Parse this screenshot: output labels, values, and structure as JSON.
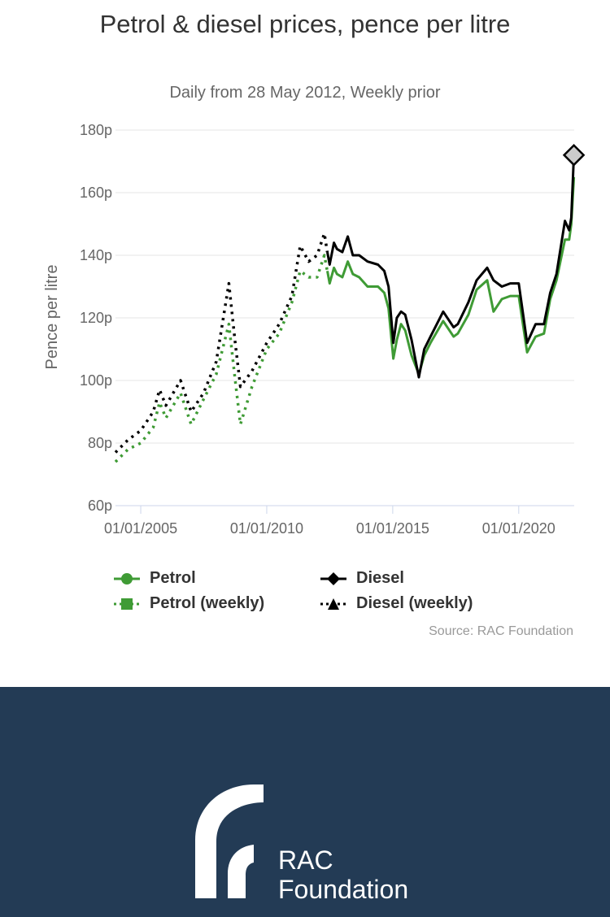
{
  "chart_data": {
    "type": "line",
    "title": "Petrol & diesel prices, pence per litre",
    "subtitle": "Daily from 28 May 2012, Weekly prior",
    "ylabel": "Pence per litre",
    "xlabel": "",
    "ylim": [
      60,
      180
    ],
    "y_ticks": [
      "60p",
      "80p",
      "100p",
      "120p",
      "140p",
      "160p",
      "180p"
    ],
    "y_tick_values": [
      60,
      80,
      100,
      120,
      140,
      160,
      180
    ],
    "x_ticks": [
      "01/01/2005",
      "01/01/2010",
      "01/01/2015",
      "01/01/2020"
    ],
    "x_tick_values": [
      "2005-01-01",
      "2010-01-01",
      "2015-01-01",
      "2020-01-01"
    ],
    "xlim": [
      "2004-01-01",
      "2022-03-15"
    ],
    "legend_position": "bottom",
    "grid": true,
    "credit": "Source: RAC Foundation",
    "colors": {
      "petrol": "#3f9b35",
      "diesel": "#000000",
      "marker_fill": "#cccccc"
    },
    "series": [
      {
        "name": "Petrol",
        "style": "solid",
        "color": "#3f9b35",
        "x": [
          "2012-05-28",
          "2012-07-01",
          "2012-09-01",
          "2012-10-15",
          "2013-01-01",
          "2013-03-20",
          "2013-06-01",
          "2013-09-01",
          "2014-01-01",
          "2014-06-01",
          "2014-09-01",
          "2014-11-01",
          "2015-01-10",
          "2015-03-01",
          "2015-05-01",
          "2015-07-01",
          "2015-10-01",
          "2016-01-15",
          "2016-04-01",
          "2016-07-01",
          "2017-01-01",
          "2017-06-01",
          "2017-08-01",
          "2018-01-01",
          "2018-05-01",
          "2018-10-01",
          "2019-01-01",
          "2019-05-01",
          "2019-09-01",
          "2020-01-01",
          "2020-05-01",
          "2020-09-01",
          "2021-01-01",
          "2021-04-01",
          "2021-07-01",
          "2021-11-01",
          "2022-01-01",
          "2022-02-01",
          "2022-03-10"
        ],
        "y": [
          135,
          131,
          136,
          134,
          133,
          138,
          134,
          133,
          130,
          130,
          128,
          123,
          107,
          113,
          118,
          116,
          108,
          102,
          108,
          112,
          119,
          114,
          115,
          121,
          129,
          132,
          122,
          126,
          127,
          127,
          109,
          114,
          115,
          126,
          132,
          145,
          145,
          150,
          165
        ]
      },
      {
        "name": "Diesel",
        "style": "solid",
        "color": "#000000",
        "x": [
          "2012-05-28",
          "2012-07-01",
          "2012-09-01",
          "2012-10-15",
          "2013-01-01",
          "2013-03-20",
          "2013-06-01",
          "2013-09-01",
          "2014-01-01",
          "2014-06-01",
          "2014-09-01",
          "2014-11-01",
          "2015-01-10",
          "2015-03-01",
          "2015-05-01",
          "2015-07-01",
          "2015-10-01",
          "2016-01-15",
          "2016-04-01",
          "2016-07-01",
          "2017-01-01",
          "2017-06-01",
          "2017-08-01",
          "2018-01-01",
          "2018-05-01",
          "2018-10-01",
          "2019-01-01",
          "2019-05-01",
          "2019-09-01",
          "2020-01-01",
          "2020-05-01",
          "2020-09-01",
          "2021-01-01",
          "2021-04-01",
          "2021-07-01",
          "2021-11-01",
          "2022-01-01",
          "2022-02-01",
          "2022-03-10"
        ],
        "y": [
          141,
          137,
          144,
          142,
          141,
          146,
          140,
          140,
          138,
          137,
          135,
          130,
          112,
          120,
          122,
          121,
          113,
          101,
          110,
          114,
          122,
          117,
          118,
          125,
          132,
          136,
          132,
          130,
          131,
          131,
          112,
          118,
          118,
          128,
          134,
          151,
          148,
          152,
          172
        ]
      },
      {
        "name": "Petrol (weekly)",
        "style": "dotted",
        "color": "#3f9b35",
        "x": [
          "2004-01-01",
          "2004-07-01",
          "2005-01-01",
          "2005-07-01",
          "2005-10-01",
          "2006-01-01",
          "2006-08-01",
          "2007-01-01",
          "2007-07-01",
          "2008-01-01",
          "2008-07-01",
          "2008-10-01",
          "2008-12-15",
          "2009-06-01",
          "2010-01-01",
          "2010-07-01",
          "2011-01-01",
          "2011-05-01",
          "2011-09-01",
          "2012-01-01",
          "2012-04-15",
          "2012-05-27"
        ],
        "y": [
          74,
          78,
          80,
          85,
          93,
          88,
          96,
          86,
          94,
          102,
          118,
          100,
          86,
          98,
          110,
          115,
          125,
          135,
          133,
          133,
          140,
          135
        ]
      },
      {
        "name": "Diesel (weekly)",
        "style": "dotted",
        "color": "#000000",
        "x": [
          "2004-01-01",
          "2004-07-01",
          "2005-01-01",
          "2005-07-01",
          "2005-10-01",
          "2006-01-01",
          "2006-08-01",
          "2007-01-01",
          "2007-07-01",
          "2008-01-01",
          "2008-07-01",
          "2008-10-01",
          "2008-12-15",
          "2009-06-01",
          "2010-01-01",
          "2010-07-01",
          "2011-01-01",
          "2011-05-01",
          "2011-09-01",
          "2012-01-01",
          "2012-04-15",
          "2012-05-27"
        ],
        "y": [
          77,
          81,
          84,
          90,
          97,
          92,
          100,
          90,
          96,
          106,
          131,
          112,
          98,
          103,
          112,
          118,
          127,
          143,
          138,
          140,
          147,
          141
        ]
      }
    ]
  },
  "footer": {
    "logo_line1": "RAC",
    "logo_line2": "Foundation",
    "logo_icon": "rac-foundation-logo-icon",
    "background_color": "#233b55"
  }
}
